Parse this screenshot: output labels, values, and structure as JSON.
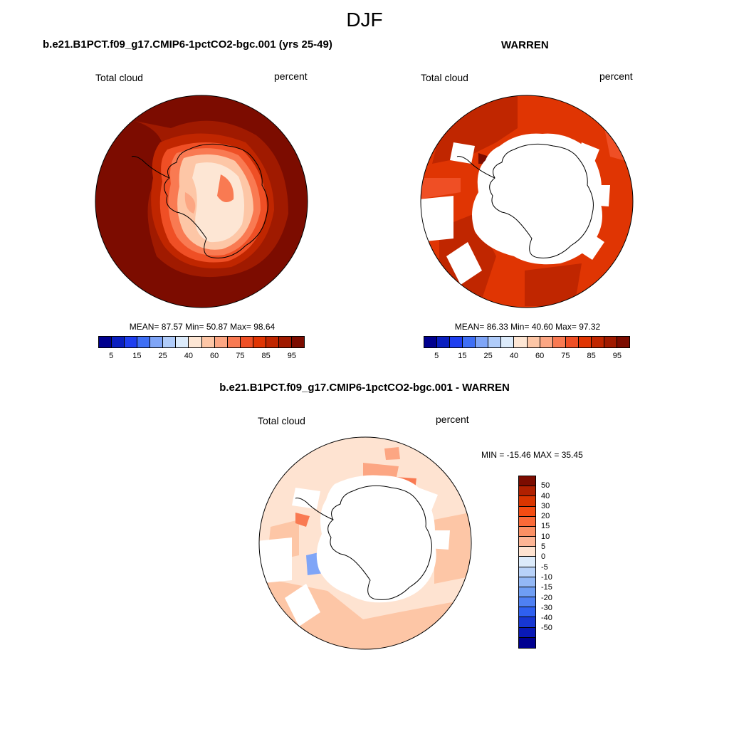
{
  "figure": {
    "season": "DJF"
  },
  "panels": [
    {
      "id": "model",
      "title": "b.e21.B1PCT.f09_g17.CMIP6-1pctCO2-bgc.001 (yrs 25-49)",
      "variable": "Total cloud",
      "units": "percent",
      "stats": {
        "mean": "87.57",
        "min": "50.87",
        "max": "98.64"
      },
      "stats_text": "MEAN=  87.57  Min=  50.87  Max=  98.64"
    },
    {
      "id": "obs",
      "title": "WARREN",
      "variable": "Total cloud",
      "units": "percent",
      "stats": {
        "mean": "86.33",
        "min": "40.60",
        "max": "97.32"
      },
      "stats_text": "MEAN=  86.33  Min=  40.60  Max=  97.32"
    },
    {
      "id": "diff",
      "title": "b.e21.B1PCT.f09_g17.CMIP6-1pctCO2-bgc.001 - WARREN",
      "variable": "Total cloud",
      "units": "percent",
      "stats": {
        "min": "-15.46",
        "max": "35.45"
      },
      "stats_text": "MIN = -15.46 MAX =  35.45"
    }
  ],
  "colorbars": {
    "abs": {
      "colors": [
        "#00008f",
        "#0a1fc0",
        "#1f3ff0",
        "#3f6ff5",
        "#7fa5f7",
        "#b0ccfa",
        "#dcebfb",
        "#fde6d4",
        "#fdc6a6",
        "#fca683",
        "#f97a52",
        "#ef4f25",
        "#e03503",
        "#c02600",
        "#a01a00",
        "#7c0c00"
      ],
      "ticks": [
        "5",
        "15",
        "25",
        "40",
        "60",
        "75",
        "85",
        "95"
      ]
    },
    "diff": {
      "colors": [
        "#7c0c00",
        "#b02000",
        "#d93500",
        "#f44c12",
        "#fa6a38",
        "#fb9064",
        "#fdb595",
        "#fee3d1",
        "#dcebfb",
        "#b8d2f9",
        "#93b8f6",
        "#6f9ef4",
        "#4f80f3",
        "#2f60f0",
        "#1737d3",
        "#0919b6",
        "#000090"
      ],
      "ticks": [
        "50",
        "40",
        "30",
        "20",
        "15",
        "10",
        "5",
        "0",
        "-5",
        "-10",
        "-15",
        "-20",
        "-30",
        "-40",
        "-50"
      ]
    }
  }
}
